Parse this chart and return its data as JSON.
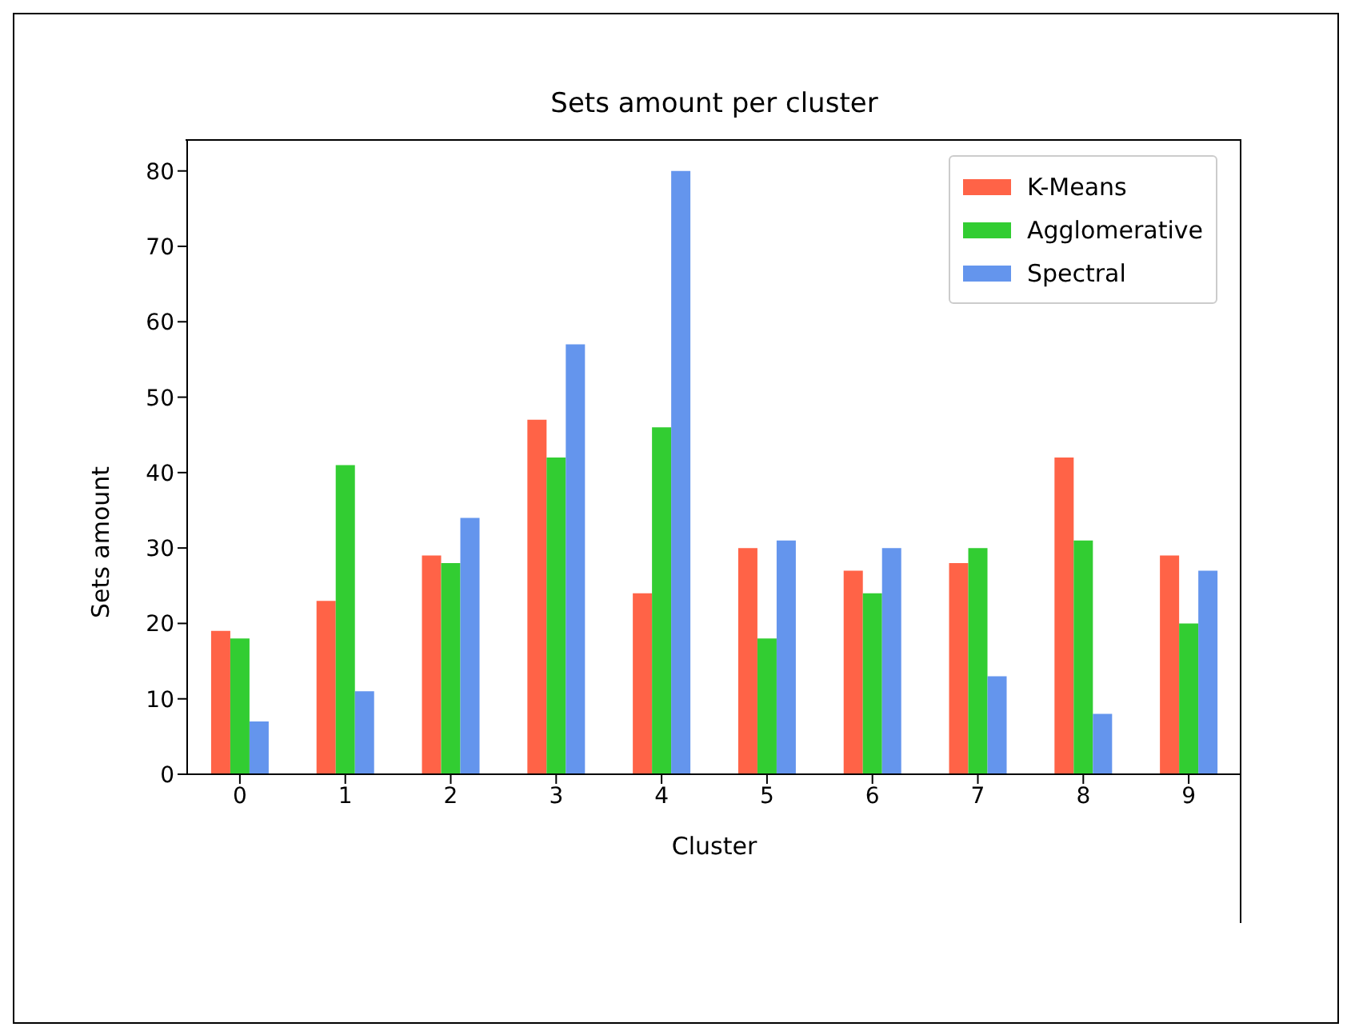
{
  "chart_data": {
    "type": "bar",
    "title": "Sets amount per cluster",
    "xlabel": "Cluster",
    "ylabel": "Sets amount",
    "categories": [
      "0",
      "1",
      "2",
      "3",
      "4",
      "5",
      "6",
      "7",
      "8",
      "9"
    ],
    "series": [
      {
        "name": "K-Means",
        "color": "#ff6347",
        "values": [
          19,
          23,
          29,
          47,
          24,
          30,
          27,
          28,
          42,
          29
        ]
      },
      {
        "name": "Agglomerative",
        "color": "#32cd32",
        "values": [
          18,
          41,
          28,
          42,
          46,
          18,
          24,
          30,
          31,
          20
        ]
      },
      {
        "name": "Spectral",
        "color": "#6495ed",
        "values": [
          7,
          11,
          34,
          57,
          80,
          31,
          30,
          13,
          8,
          27
        ]
      }
    ],
    "ylim": [
      0,
      84
    ],
    "yticks": [
      0,
      10,
      20,
      30,
      40,
      50,
      60,
      70,
      80
    ],
    "grid": false,
    "legend": "top right"
  }
}
